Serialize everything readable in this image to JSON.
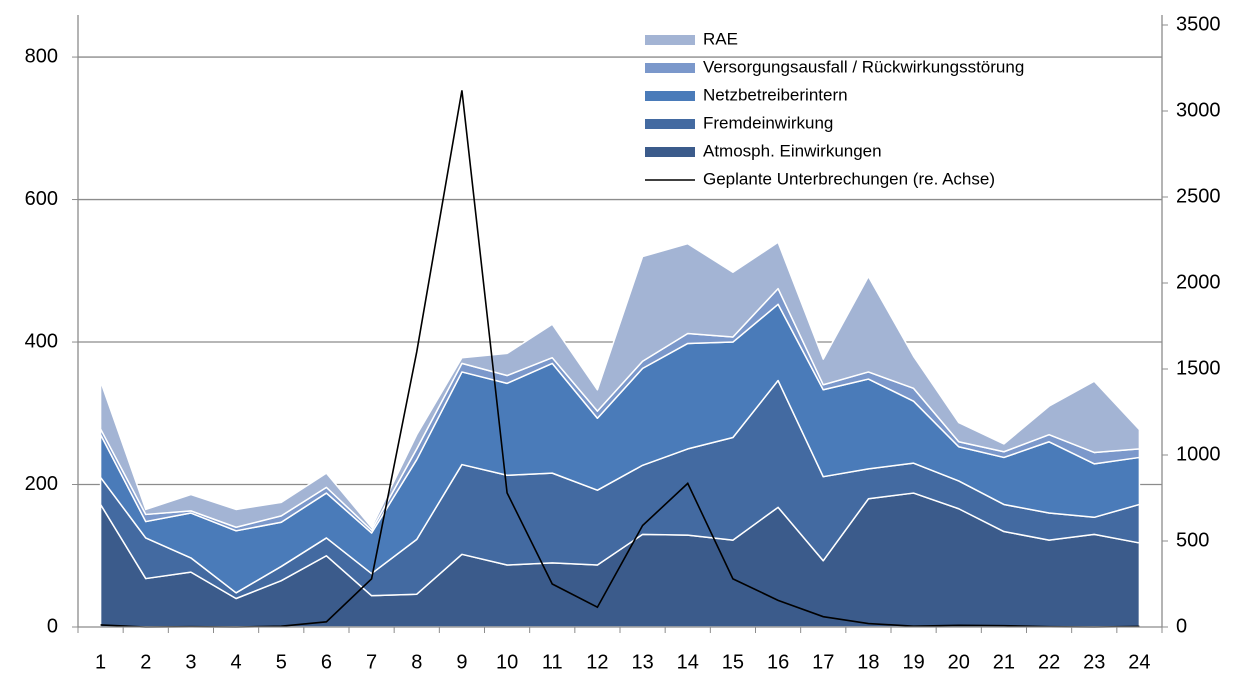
{
  "chart_data": {
    "type": "stacked-area",
    "categories": [
      "1",
      "2",
      "3",
      "4",
      "5",
      "6",
      "7",
      "8",
      "9",
      "10",
      "11",
      "12",
      "13",
      "14",
      "15",
      "16",
      "17",
      "18",
      "19",
      "20",
      "21",
      "22",
      "23",
      "24"
    ],
    "series": [
      {
        "name": "Atmosph. Einwirkungen",
        "color": "#3b5b8b",
        "values": [
          172,
          68,
          77,
          40,
          65,
          100,
          44,
          46,
          102,
          87,
          90,
          87,
          130,
          129,
          122,
          168,
          93,
          180,
          188,
          166,
          134,
          122,
          130,
          118
        ]
      },
      {
        "name": "Fremdeinwirkung",
        "color": "#436aa1",
        "values": [
          38,
          57,
          20,
          8,
          20,
          25,
          31,
          77,
          126,
          126,
          126,
          105,
          97,
          121,
          144,
          178,
          118,
          42,
          42,
          39,
          38,
          38,
          24,
          54
        ]
      },
      {
        "name": "Netzbetreiberintern",
        "color": "#4a7bb9",
        "values": [
          60,
          23,
          63,
          87,
          62,
          63,
          57,
          112,
          130,
          129,
          154,
          101,
          136,
          148,
          134,
          107,
          122,
          126,
          87,
          48,
          66,
          100,
          75,
          66
        ]
      },
      {
        "name": "Versorgungsausfall / Rückwirkungsstörung",
        "color": "#7b98cb",
        "values": [
          8,
          10,
          3,
          5,
          9,
          8,
          4,
          15,
          12,
          11,
          8,
          10,
          10,
          14,
          7,
          22,
          7,
          10,
          18,
          7,
          8,
          10,
          16,
          12
        ]
      },
      {
        "name": "RAE",
        "color": "#a3b4d4",
        "values": [
          67,
          7,
          23,
          25,
          19,
          20,
          4,
          20,
          8,
          31,
          47,
          30,
          147,
          126,
          91,
          65,
          36,
          134,
          45,
          27,
          11,
          40,
          100,
          27
        ]
      },
      {
        "name": "Geplante Unterbrechungen (re. Achse)",
        "color": "#000000",
        "axis": "y2",
        "type": "line",
        "values": [
          12,
          0,
          2,
          0,
          5,
          30,
          280,
          1600,
          3120,
          780,
          250,
          115,
          590,
          835,
          280,
          155,
          60,
          20,
          5,
          10,
          8,
          2,
          0,
          3
        ]
      }
    ],
    "ylim": [
      0,
      845
    ],
    "yticks": [
      0,
      200,
      400,
      600,
      800
    ],
    "y2lim": [
      0,
      3500
    ],
    "y2ticks": [
      0,
      500,
      1000,
      1500,
      2000,
      2500,
      3000,
      3500
    ],
    "grid": true,
    "legend": "top-right"
  }
}
